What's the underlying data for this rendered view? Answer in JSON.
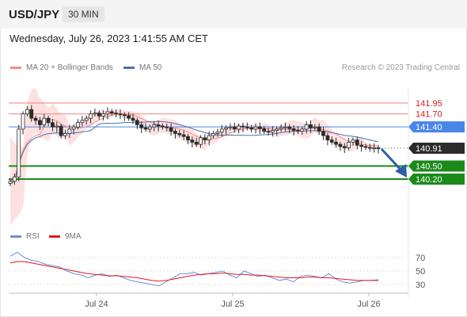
{
  "header": {
    "symbol": "USD/JPY",
    "timeframe": "30 MIN"
  },
  "date_text": "Wednesday, July 26, 2023 1:41:55 AM CET",
  "legend": {
    "ma_bb": "MA 20 + Bollinger Bands",
    "ma50": "MA 50",
    "rsi": "RSI",
    "ma9": "9MA",
    "research": "Research © 2023 Trading Central"
  },
  "colors": {
    "bollinger_fill": "#fde1e1",
    "ma20": "#f28c8c",
    "ma50": "#4a6fb5",
    "resistance": "#f08080",
    "pivot": "#4a86e8",
    "support": "#1b8a1b",
    "price_badge": "#2b2b2b",
    "arrow": "#2c5fa8",
    "rsi": "#6b8fde",
    "rsi_ma": "#e31a1c",
    "candle_up": "#ffffff",
    "candle_down": "#2b2b2b"
  },
  "chart_data": [
    {
      "type": "candlestick",
      "y_range": [
        139.45,
        142.35
      ],
      "x_labels": [
        "Jul 24",
        "Jul 25",
        "Jul 26"
      ],
      "close_series": [
        140.15,
        140.25,
        141.35,
        141.7,
        141.8,
        141.6,
        141.55,
        141.45,
        141.6,
        141.5,
        141.4,
        141.42,
        141.2,
        141.25,
        141.35,
        141.4,
        141.5,
        141.55,
        141.6,
        141.7,
        141.72,
        141.65,
        141.7,
        141.75,
        141.72,
        141.7,
        141.68,
        141.66,
        141.6,
        141.55,
        141.45,
        141.38,
        141.35,
        141.4,
        141.45,
        141.42,
        141.4,
        141.38,
        141.3,
        141.25,
        141.22,
        141.18,
        141.1,
        141.05,
        141.0,
        141.15,
        141.1,
        141.2,
        141.25,
        141.28,
        141.35,
        141.38,
        141.4,
        141.35,
        141.42,
        141.4,
        141.38,
        141.35,
        141.4,
        141.36,
        141.3,
        141.28,
        141.32,
        141.35,
        141.38,
        141.4,
        141.36,
        141.32,
        141.3,
        141.35,
        141.45,
        141.38,
        141.4,
        141.3,
        141.2,
        141.1,
        141.05,
        141.0,
        140.95,
        140.92,
        141.05,
        141.1,
        140.98,
        140.95,
        140.93,
        140.91,
        140.92,
        140.91
      ],
      "levels": [
        {
          "label": "141.95",
          "kind": "resistance",
          "value": 141.95
        },
        {
          "label": "141.70",
          "kind": "resistance",
          "value": 141.7
        },
        {
          "label": "141.40",
          "kind": "pivot",
          "value": 141.4
        },
        {
          "label": "140.91",
          "kind": "last_price",
          "value": 140.91
        },
        {
          "label": "140.50",
          "kind": "support",
          "value": 140.5
        },
        {
          "label": "140.20",
          "kind": "support",
          "value": 140.2
        }
      ],
      "series": [
        {
          "name": "MA 20 + Bollinger Bands"
        },
        {
          "name": "MA 50"
        }
      ]
    },
    {
      "type": "line",
      "y_range": [
        15,
        85
      ],
      "y_ticks": [
        "70",
        "50",
        "30"
      ],
      "series": [
        {
          "name": "RSI",
          "values": [
            72,
            78,
            70,
            66,
            64,
            60,
            58,
            56,
            50,
            46,
            44,
            40,
            44,
            46,
            42,
            44,
            40,
            36,
            34,
            32,
            30,
            28,
            34,
            40,
            46,
            46,
            48,
            44,
            46,
            48,
            50,
            44,
            40,
            50,
            46,
            42,
            44,
            40,
            36,
            38,
            34,
            42,
            44,
            42,
            40,
            46,
            38,
            34,
            32,
            34,
            36,
            36,
            37
          ]
        },
        {
          "name": "9MA",
          "values": [
            62,
            64,
            64,
            62,
            60,
            58,
            56,
            54,
            52,
            50,
            48,
            46,
            45,
            44,
            43,
            43,
            42,
            41,
            40,
            38,
            36,
            35,
            36,
            38,
            40,
            42,
            44,
            45,
            46,
            46,
            47,
            46,
            45,
            45,
            44,
            44,
            43,
            42,
            41,
            40,
            40,
            40,
            41,
            41,
            40,
            40,
            39,
            38,
            37,
            36,
            36,
            36,
            36
          ]
        }
      ]
    }
  ]
}
